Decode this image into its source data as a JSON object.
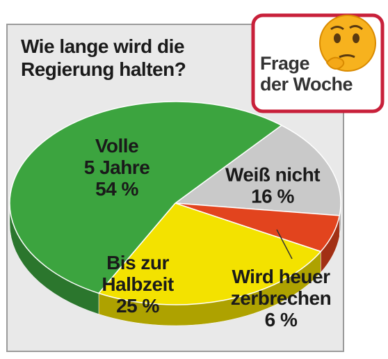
{
  "chart_data": {
    "type": "pie",
    "title": "Wie lange wird die\nRegierung halten?",
    "badge": "Frage\nder Woche",
    "categories": [
      "Weiß nicht",
      "Wird heuer\nzerbrechen",
      "Bis zur\nHalbzeit",
      "Volle\n5 Jahre"
    ],
    "values": [
      16,
      6,
      25,
      54
    ],
    "value_labels": [
      "16 %",
      "6 %",
      "25 %",
      "54 %"
    ],
    "colors": [
      "#c9c9c9",
      "#e2441e",
      "#f3e200",
      "#3ca43f"
    ]
  }
}
